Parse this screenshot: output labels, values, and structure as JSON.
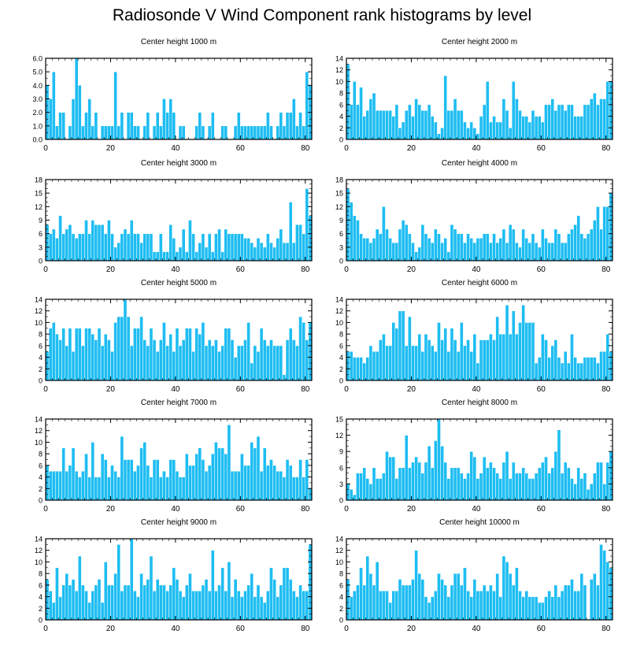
{
  "title": "Radiosonde V Wind Component rank histograms by level",
  "colors": {
    "bar": "#1ebdf2",
    "bar_edge": "#ffffff",
    "axis": "#000000",
    "background": "#ffffff"
  },
  "chart_data": [
    {
      "type": "bar",
      "title": "Center height 1000 m",
      "xlim": [
        0,
        82
      ],
      "ylim": [
        0,
        6
      ],
      "xticks": [
        0,
        20,
        40,
        60,
        80
      ],
      "yticks": [
        0,
        1,
        2,
        3,
        4,
        5,
        6
      ],
      "ytick_labels": [
        "0.0",
        "1.0",
        "2.0",
        "3.0",
        "4.0",
        "5.0",
        "6.0"
      ],
      "values": [
        4,
        3,
        5,
        1,
        2,
        2,
        0,
        1,
        3,
        6,
        4,
        1,
        2,
        3,
        1,
        2,
        0,
        1,
        1,
        1,
        1,
        5,
        1,
        2,
        0,
        2,
        2,
        1,
        1,
        0,
        1,
        2,
        0,
        1,
        2,
        1,
        3,
        2,
        3,
        2,
        0,
        1,
        1,
        0,
        0,
        0,
        1,
        2,
        1,
        0,
        1,
        2,
        0,
        0,
        1,
        1,
        0,
        0,
        1,
        2,
        1,
        1,
        1,
        1,
        1,
        1,
        1,
        1,
        2,
        1,
        0,
        1,
        2,
        1,
        2,
        2,
        3,
        1,
        2,
        1,
        5,
        4
      ]
    },
    {
      "type": "bar",
      "title": "Center height 2000 m",
      "xlim": [
        0,
        82
      ],
      "ylim": [
        0,
        14
      ],
      "xticks": [
        0,
        20,
        40,
        60,
        80
      ],
      "yticks": [
        0,
        2,
        4,
        6,
        8,
        10,
        12,
        14
      ],
      "ytick_labels": [
        "0",
        "2",
        "4",
        "6",
        "8",
        "10",
        "12",
        "14"
      ],
      "values": [
        13,
        6,
        10,
        6,
        9,
        4,
        5,
        7,
        8,
        5,
        5,
        5,
        5,
        5,
        4,
        6,
        2,
        3,
        5,
        6,
        4,
        7,
        6,
        5,
        5,
        6,
        4,
        3,
        1,
        2,
        11,
        5,
        5,
        7,
        5,
        5,
        3,
        2,
        3,
        2,
        1,
        4,
        6,
        10,
        3,
        4,
        3,
        3,
        7,
        5,
        2,
        10,
        7,
        5,
        4,
        4,
        3,
        5,
        4,
        4,
        3,
        6,
        6,
        7,
        5,
        6,
        6,
        5,
        6,
        6,
        4,
        4,
        4,
        6,
        6,
        7,
        8,
        6,
        7,
        7,
        10,
        10
      ]
    },
    {
      "type": "bar",
      "title": "Center height 3000 m",
      "xlim": [
        0,
        82
      ],
      "ylim": [
        0,
        18
      ],
      "xticks": [
        0,
        20,
        40,
        60,
        80
      ],
      "yticks": [
        0,
        3,
        6,
        9,
        12,
        15,
        18
      ],
      "ytick_labels": [
        "0",
        "3",
        "6",
        "9",
        "12",
        "15",
        "18"
      ],
      "values": [
        8,
        6,
        7,
        5,
        10,
        6,
        7,
        8,
        6,
        5,
        6,
        6,
        9,
        6,
        9,
        8,
        8,
        8,
        6,
        9,
        6,
        3,
        4,
        6,
        7,
        6,
        9,
        6,
        6,
        4,
        6,
        6,
        6,
        2,
        2,
        6,
        2,
        2,
        8,
        5,
        2,
        3,
        7,
        2,
        9,
        6,
        2,
        4,
        6,
        3,
        6,
        2,
        6,
        7,
        2,
        7,
        6,
        6,
        6,
        6,
        6,
        5,
        5,
        4,
        3,
        5,
        4,
        3,
        6,
        4,
        3,
        5,
        7,
        4,
        4,
        13,
        4,
        8,
        8,
        6,
        16,
        10
      ]
    },
    {
      "type": "bar",
      "title": "Center height 4000 m",
      "xlim": [
        0,
        82
      ],
      "ylim": [
        0,
        18
      ],
      "xticks": [
        0,
        20,
        40,
        60,
        80
      ],
      "yticks": [
        0,
        3,
        6,
        9,
        12,
        15,
        18
      ],
      "ytick_labels": [
        "0",
        "3",
        "6",
        "9",
        "12",
        "15",
        "18"
      ],
      "values": [
        16,
        13,
        10,
        9,
        6,
        5,
        5,
        4,
        5,
        7,
        6,
        12,
        7,
        5,
        4,
        4,
        7,
        9,
        8,
        6,
        4,
        2,
        3,
        8,
        6,
        5,
        4,
        7,
        6,
        4,
        5,
        2,
        8,
        7,
        6,
        6,
        4,
        6,
        5,
        4,
        5,
        5,
        6,
        6,
        4,
        6,
        4,
        5,
        7,
        4,
        8,
        7,
        4,
        3,
        7,
        5,
        4,
        6,
        4,
        3,
        7,
        5,
        4,
        4,
        7,
        6,
        4,
        4,
        6,
        7,
        8,
        10,
        6,
        5,
        6,
        7,
        9,
        12,
        7,
        12,
        12,
        15
      ]
    },
    {
      "type": "bar",
      "title": "Center height 5000 m",
      "xlim": [
        0,
        82
      ],
      "ylim": [
        0,
        14
      ],
      "xticks": [
        0,
        20,
        40,
        60,
        80
      ],
      "yticks": [
        0,
        2,
        4,
        6,
        8,
        10,
        12,
        14
      ],
      "ytick_labels": [
        "0",
        "2",
        "4",
        "6",
        "8",
        "10",
        "12",
        "14"
      ],
      "values": [
        5,
        9,
        10,
        8,
        7,
        9,
        6,
        9,
        5,
        9,
        9,
        6,
        9,
        9,
        8,
        7,
        9,
        6,
        8,
        7,
        5,
        10,
        11,
        11,
        14,
        11,
        6,
        9,
        9,
        11,
        7,
        6,
        9,
        7,
        5,
        7,
        10,
        6,
        8,
        5,
        9,
        6,
        7,
        9,
        9,
        5,
        9,
        8,
        10,
        6,
        7,
        6,
        7,
        5,
        6,
        9,
        9,
        7,
        4,
        6,
        6,
        7,
        10,
        3,
        6,
        5,
        9,
        7,
        6,
        7,
        6,
        6,
        6,
        1,
        7,
        9,
        7,
        6,
        11,
        10,
        7,
        10
      ]
    },
    {
      "type": "bar",
      "title": "Center height 6000 m",
      "xlim": [
        0,
        82
      ],
      "ylim": [
        0,
        14
      ],
      "xticks": [
        0,
        20,
        40,
        60,
        80
      ],
      "yticks": [
        0,
        2,
        4,
        6,
        8,
        10,
        12,
        14
      ],
      "ytick_labels": [
        "0",
        "2",
        "4",
        "6",
        "8",
        "10",
        "12",
        "14"
      ],
      "values": [
        5,
        5,
        4,
        4,
        4,
        3,
        4,
        6,
        5,
        5,
        7,
        8,
        6,
        6,
        10,
        9,
        12,
        12,
        6,
        11,
        6,
        6,
        8,
        5,
        8,
        7,
        6,
        5,
        10,
        7,
        9,
        5,
        9,
        7,
        5,
        10,
        6,
        7,
        5,
        8,
        3,
        7,
        7,
        7,
        8,
        7,
        11,
        8,
        8,
        13,
        8,
        12,
        8,
        10,
        13,
        10,
        10,
        10,
        3,
        4,
        8,
        7,
        4,
        6,
        7,
        4,
        3,
        5,
        3,
        8,
        4,
        3,
        3,
        4,
        4,
        4,
        4,
        3,
        5,
        5,
        8,
        5
      ]
    },
    {
      "type": "bar",
      "title": "Center height 7000 m",
      "xlim": [
        0,
        82
      ],
      "ylim": [
        0,
        14
      ],
      "xticks": [
        0,
        20,
        40,
        60,
        80
      ],
      "yticks": [
        0,
        2,
        4,
        6,
        8,
        10,
        12,
        14
      ],
      "ytick_labels": [
        "0",
        "2",
        "4",
        "6",
        "8",
        "10",
        "12",
        "14"
      ],
      "values": [
        6,
        5,
        5,
        5,
        5,
        9,
        5,
        6,
        9,
        5,
        4,
        5,
        8,
        4,
        10,
        4,
        4,
        8,
        7,
        4,
        6,
        5,
        4,
        11,
        7,
        7,
        7,
        5,
        6,
        9,
        10,
        6,
        4,
        7,
        7,
        4,
        5,
        4,
        7,
        7,
        5,
        4,
        4,
        8,
        6,
        6,
        8,
        9,
        7,
        5,
        6,
        8,
        10,
        9,
        9,
        8,
        13,
        5,
        5,
        5,
        8,
        6,
        6,
        10,
        9,
        11,
        5,
        9,
        6,
        7,
        6,
        5,
        5,
        4,
        7,
        6,
        4,
        4,
        7,
        4,
        7,
        2
      ]
    },
    {
      "type": "bar",
      "title": "Center height 8000 m",
      "xlim": [
        0,
        82
      ],
      "ylim": [
        0,
        15
      ],
      "xticks": [
        0,
        20,
        40,
        60,
        80
      ],
      "yticks": [
        0,
        3,
        6,
        9,
        12,
        15
      ],
      "ytick_labels": [
        "0",
        "3",
        "6",
        "9",
        "12",
        "15"
      ],
      "values": [
        3,
        2,
        1,
        5,
        5,
        6,
        4,
        3,
        6,
        4,
        4,
        5,
        9,
        8,
        8,
        4,
        6,
        6,
        12,
        6,
        7,
        8,
        7,
        5,
        7,
        10,
        6,
        11,
        15,
        10,
        7,
        4,
        6,
        6,
        6,
        5,
        4,
        5,
        9,
        8,
        4,
        5,
        8,
        6,
        7,
        6,
        5,
        4,
        7,
        9,
        4,
        7,
        5,
        5,
        6,
        5,
        4,
        4,
        5,
        6,
        7,
        8,
        5,
        6,
        9,
        13,
        5,
        7,
        6,
        4,
        3,
        6,
        4,
        5,
        2,
        3,
        5,
        7,
        7,
        3,
        7,
        9
      ]
    },
    {
      "type": "bar",
      "title": "Center height 9000 m",
      "xlim": [
        0,
        82
      ],
      "ylim": [
        0,
        14
      ],
      "xticks": [
        0,
        20,
        40,
        60,
        80
      ],
      "yticks": [
        0,
        2,
        4,
        6,
        8,
        10,
        12,
        14
      ],
      "ytick_labels": [
        "0",
        "2",
        "4",
        "6",
        "8",
        "10",
        "12",
        "14"
      ],
      "values": [
        7,
        5,
        3,
        9,
        4,
        6,
        8,
        6,
        7,
        5,
        11,
        6,
        5,
        3,
        5,
        6,
        7,
        3,
        10,
        6,
        6,
        8,
        13,
        5,
        6,
        6,
        14,
        5,
        4,
        8,
        6,
        7,
        11,
        5,
        7,
        6,
        6,
        5,
        6,
        9,
        7,
        5,
        4,
        6,
        8,
        5,
        5,
        5,
        6,
        7,
        5,
        12,
        5,
        6,
        9,
        5,
        10,
        4,
        7,
        5,
        4,
        5,
        6,
        8,
        4,
        6,
        4,
        3,
        5,
        9,
        7,
        4,
        6,
        9,
        9,
        7,
        5,
        4,
        6,
        5,
        5,
        13
      ]
    },
    {
      "type": "bar",
      "title": "Center height 10000 m",
      "xlim": [
        0,
        82
      ],
      "ylim": [
        0,
        14
      ],
      "xticks": [
        0,
        20,
        40,
        60,
        80
      ],
      "yticks": [
        0,
        2,
        4,
        6,
        8,
        10,
        12,
        14
      ],
      "ytick_labels": [
        "0",
        "2",
        "4",
        "6",
        "8",
        "10",
        "12",
        "14"
      ],
      "values": [
        7,
        4,
        5,
        6,
        9,
        6,
        11,
        8,
        6,
        10,
        5,
        5,
        5,
        3,
        5,
        5,
        7,
        6,
        6,
        6,
        7,
        12,
        8,
        7,
        4,
        3,
        4,
        5,
        8,
        7,
        6,
        4,
        6,
        8,
        8,
        6,
        9,
        5,
        4,
        7,
        5,
        5,
        6,
        5,
        6,
        5,
        8,
        4,
        11,
        10,
        8,
        6,
        9,
        5,
        4,
        5,
        4,
        4,
        4,
        3,
        3,
        4,
        5,
        4,
        6,
        4,
        5,
        6,
        6,
        7,
        5,
        5,
        8,
        6,
        0,
        7,
        8,
        6,
        13,
        12,
        10,
        9
      ]
    }
  ]
}
